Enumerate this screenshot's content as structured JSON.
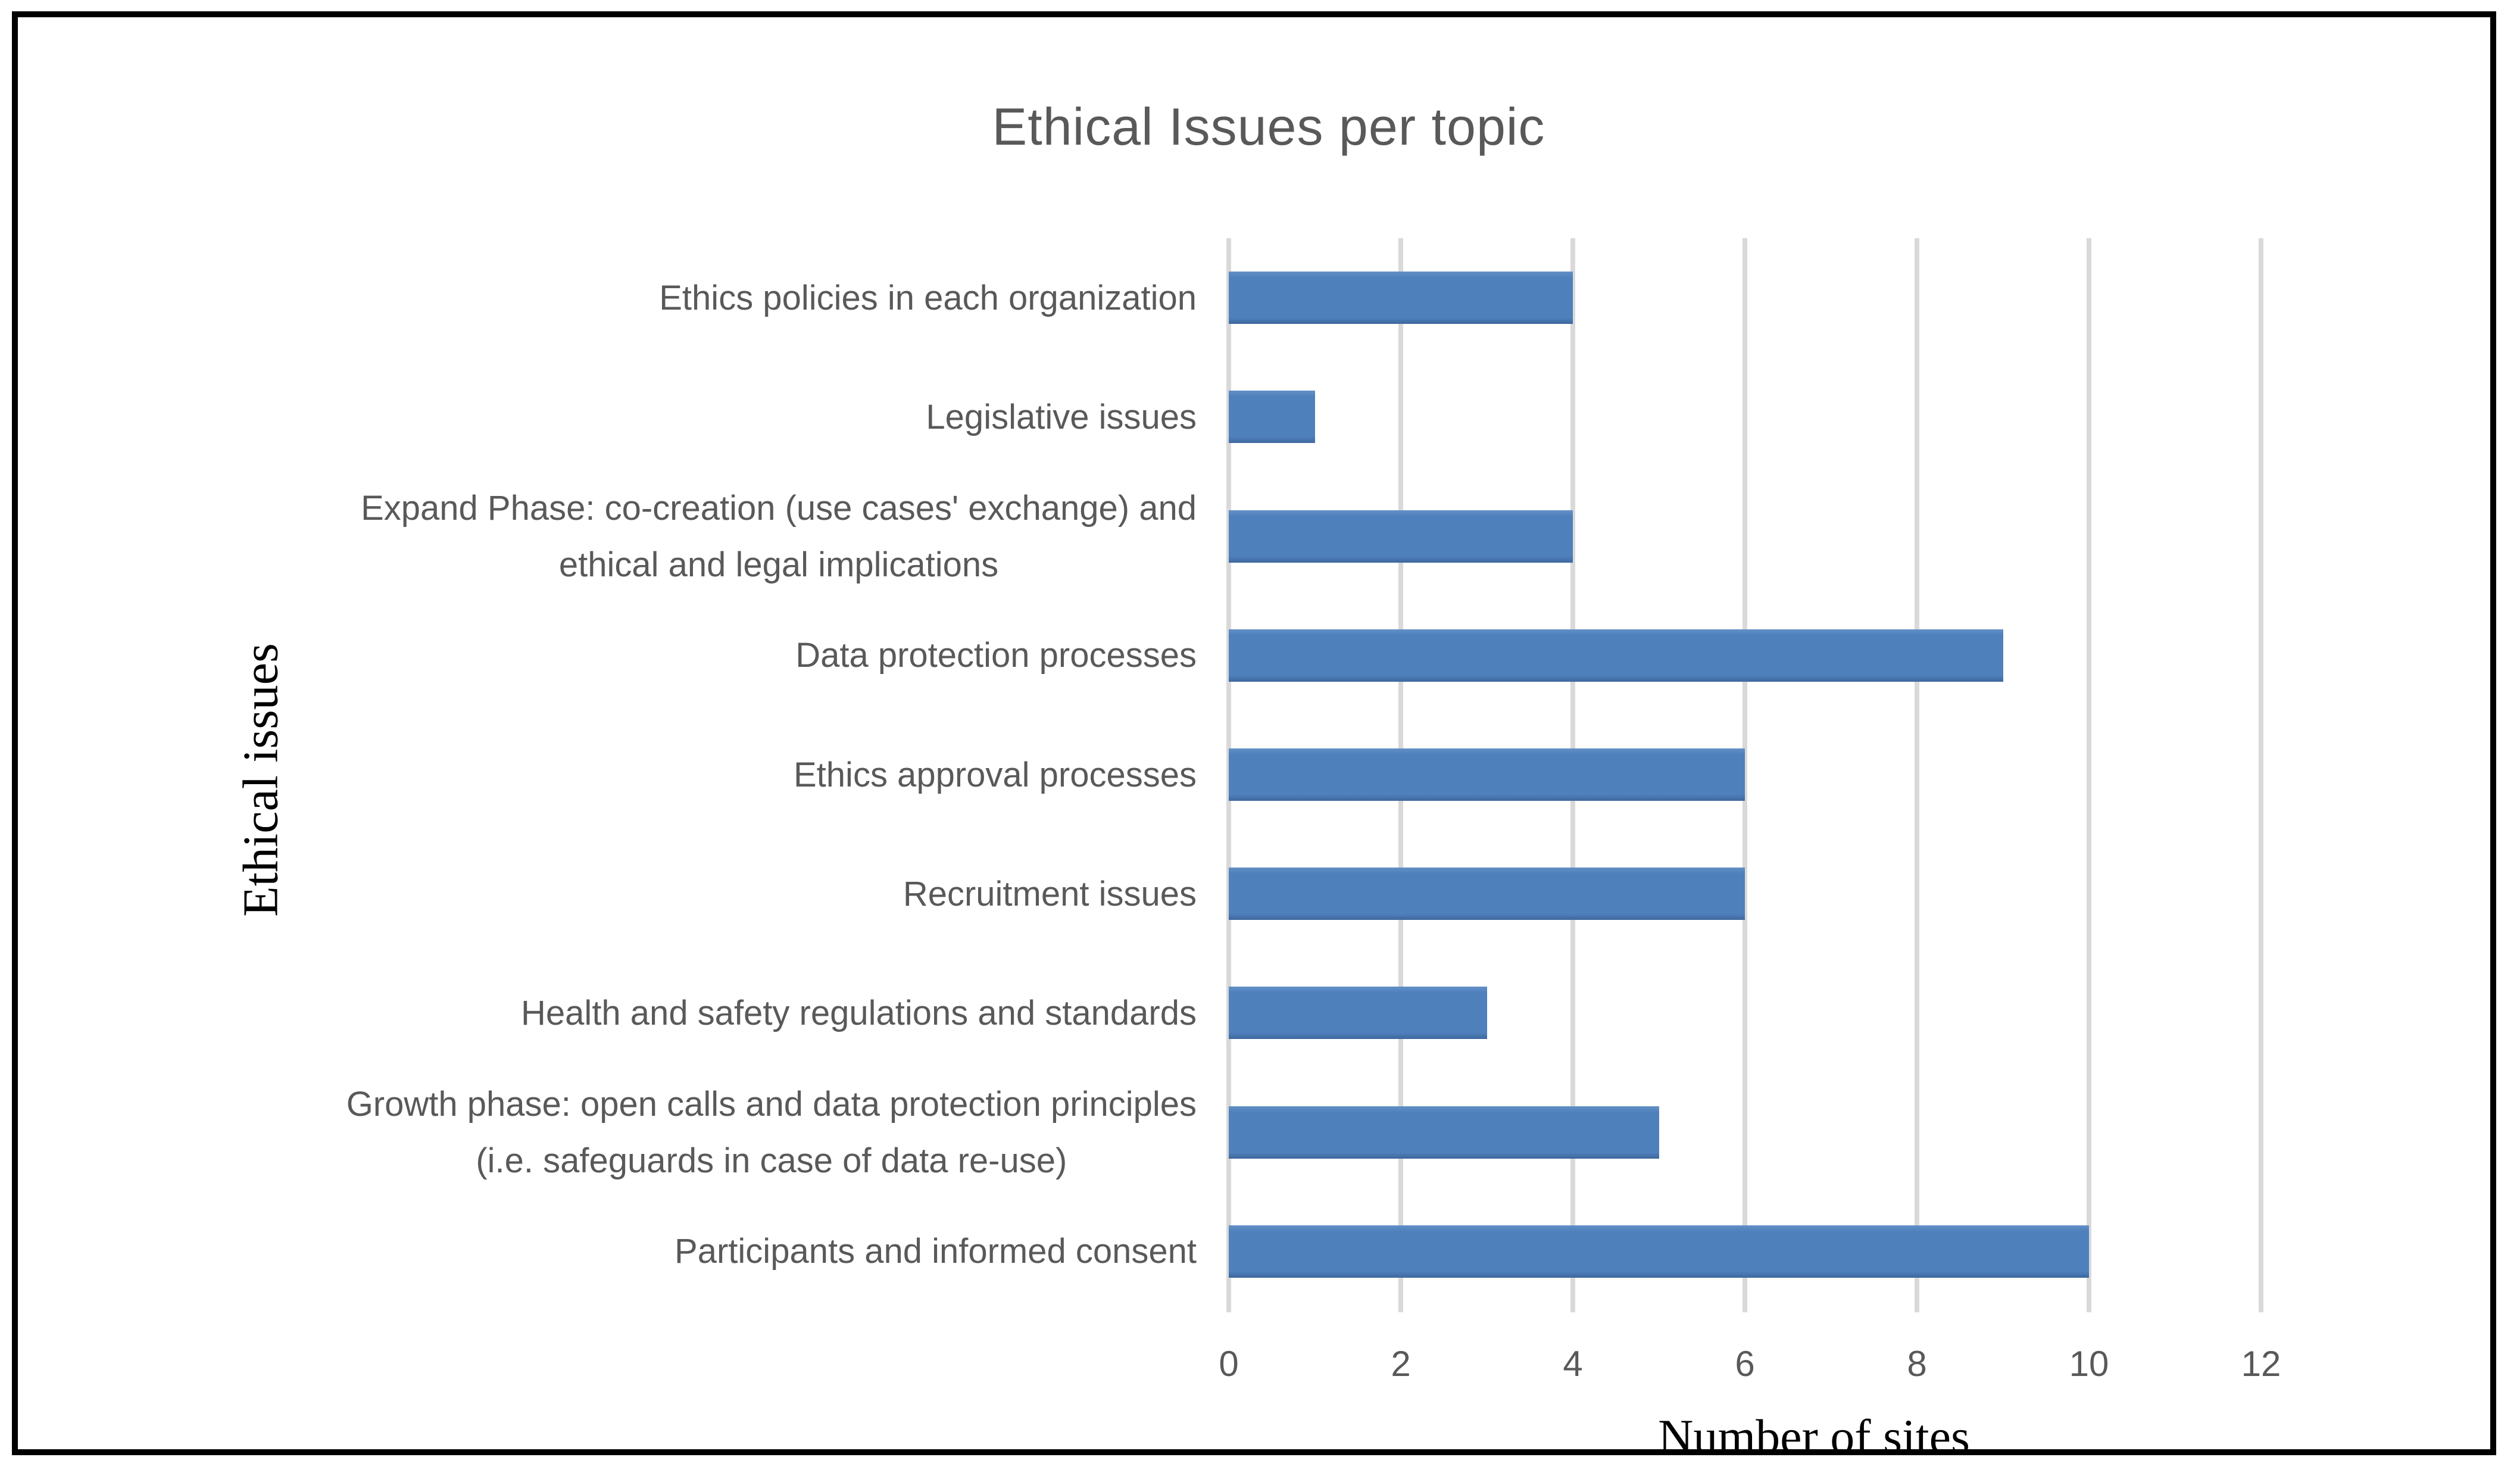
{
  "chart_data": {
    "type": "bar",
    "orientation": "horizontal",
    "title": "Ethical Issues per topic",
    "xlabel": "Number of sites",
    "ylabel": "Ethical issues",
    "rows": [
      {
        "label": "Ethics policies in each organization",
        "lines": [
          "Ethics policies in each organization"
        ],
        "value": 4
      },
      {
        "label": "Legislative issues",
        "lines": [
          "Legislative issues"
        ],
        "value": 1
      },
      {
        "label": "Expand Phase: co-creation (use cases' exchange) and ethical and legal implications",
        "lines": [
          "Expand Phase: co-creation (use cases' exchange) and",
          "ethical and legal implications"
        ],
        "value": 4
      },
      {
        "label": "Data protection processes",
        "lines": [
          "Data protection processes"
        ],
        "value": 9
      },
      {
        "label": "Ethics approval processes",
        "lines": [
          "Ethics approval processes"
        ],
        "value": 6
      },
      {
        "label": "Recruitment issues",
        "lines": [
          "Recruitment issues"
        ],
        "value": 6
      },
      {
        "label": "Health and safety regulations and standards",
        "lines": [
          "Health and safety regulations and standards"
        ],
        "value": 3
      },
      {
        "label": "Growth phase: open calls and data protection principles (i.e. safeguards in case of data re-use)",
        "lines": [
          "Growth phase: open calls and data protection principles",
          "(i.e. safeguards in case of data re-use)"
        ],
        "value": 5
      },
      {
        "label": "Participants and informed consent",
        "lines": [
          "Participants and informed consent"
        ],
        "value": 10
      }
    ],
    "categories": [
      "Ethics policies in each organization",
      "Legislative issues",
      "Expand Phase: co-creation (use cases' exchange) and ethical and legal implications",
      "Data protection processes",
      "Ethics approval processes",
      "Recruitment issues",
      "Health and safety regulations and standards",
      "Growth phase: open calls and data protection principles (i.e. safeguards in case of data re-use)",
      "Participants and informed consent"
    ],
    "values": [
      4,
      1,
      4,
      9,
      6,
      6,
      3,
      5,
      10
    ],
    "xlim": [
      0,
      12
    ],
    "xticks": [
      0,
      2,
      4,
      6,
      8,
      10,
      12
    ],
    "grid": "vertical",
    "legend": "none",
    "colors": {
      "bar_fill": "#4e80bc",
      "bar_fill_top": "#6390c7",
      "bar_fill_bottom": "#3f679c",
      "gridline": "#d9d9d9",
      "title_text": "#595959",
      "category_text": "#595959",
      "tick_text": "#595959",
      "axis_title_text": "#000000",
      "frame_border": "#000000",
      "background": "#ffffff"
    }
  }
}
